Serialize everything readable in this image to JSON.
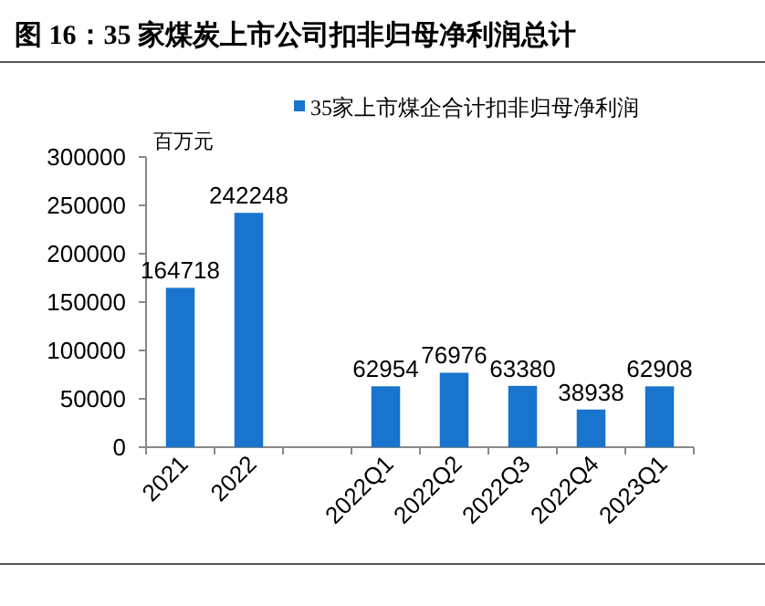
{
  "chart_data": {
    "type": "bar",
    "title": "图 16：35 家煤炭上市公司扣非归母净利润总计",
    "ylabel": "百万元",
    "categories": [
      "2021",
      "2022",
      null,
      "2022Q1",
      "2022Q2",
      "2022Q3",
      "2022Q4",
      "2023Q1"
    ],
    "series": [
      {
        "name": "35家上市煤企合计扣非归母净利润",
        "color": "#1874cd",
        "values": [
          164718,
          242248,
          null,
          62954,
          76976,
          63380,
          38938,
          62908
        ]
      }
    ],
    "ylim": [
      0,
      300000
    ],
    "yticks": [
      0,
      50000,
      100000,
      150000,
      200000,
      250000,
      300000
    ],
    "data_labels": true,
    "legend": "top",
    "grid": false
  }
}
